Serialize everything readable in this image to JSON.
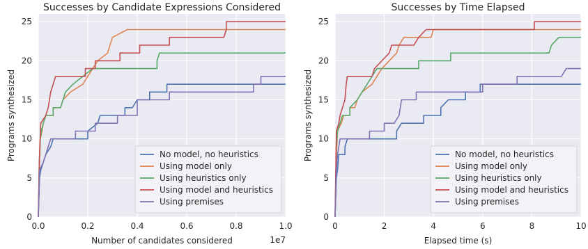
{
  "colors": {
    "background": "#eaeaf2",
    "grid": "#ffffff",
    "legend_bg": "#f3f3f7",
    "No model, no heuristics": "#4c72b0",
    "Using model only": "#dd8452",
    "Using heuristics only": "#55a868",
    "Using model and heuristics": "#c44e52",
    "Using premises": "#8172b3"
  },
  "chart_data": [
    {
      "type": "line",
      "title": "Successes by Candidate Expressions Considered",
      "xlabel": "Number of candidates considered",
      "ylabel": "Programs synthesized",
      "x_offset_label": "1e7",
      "xlim": [
        0,
        1.0
      ],
      "ylim": [
        0,
        26
      ],
      "xticks": [
        "0.0",
        "0.2",
        "0.4",
        "0.6",
        "0.8",
        "1.0"
      ],
      "yticks": [
        "0",
        "5",
        "10",
        "15",
        "20",
        "25"
      ],
      "grid": true,
      "legend": "lower-right",
      "series": [
        {
          "name": "No model, no heuristics",
          "points": [
            [
              0,
              0
            ],
            [
              0.005,
              5
            ],
            [
              0.01,
              6
            ],
            [
              0.02,
              7
            ],
            [
              0.03,
              8
            ],
            [
              0.05,
              9
            ],
            [
              0.06,
              10
            ],
            [
              0.2,
              10
            ],
            [
              0.2,
              11
            ],
            [
              0.24,
              12
            ],
            [
              0.25,
              13
            ],
            [
              0.35,
              13
            ],
            [
              0.35,
              14
            ],
            [
              0.38,
              14
            ],
            [
              0.4,
              15
            ],
            [
              0.45,
              15
            ],
            [
              0.45,
              16
            ],
            [
              0.52,
              16
            ],
            [
              0.52,
              17
            ],
            [
              1.0,
              17
            ]
          ]
        },
        {
          "name": "Using model only",
          "points": [
            [
              0,
              0
            ],
            [
              0.004,
              6
            ],
            [
              0.008,
              10
            ],
            [
              0.015,
              11
            ],
            [
              0.02,
              12
            ],
            [
              0.03,
              13
            ],
            [
              0.06,
              13
            ],
            [
              0.06,
              14
            ],
            [
              0.09,
              14
            ],
            [
              0.1,
              15
            ],
            [
              0.13,
              16
            ],
            [
              0.18,
              17
            ],
            [
              0.2,
              18
            ],
            [
              0.22,
              19
            ],
            [
              0.24,
              20
            ],
            [
              0.28,
              21
            ],
            [
              0.29,
              22
            ],
            [
              0.3,
              23
            ],
            [
              0.36,
              24
            ],
            [
              1.0,
              24
            ]
          ]
        },
        {
          "name": "Using heuristics only",
          "points": [
            [
              0,
              0
            ],
            [
              0.004,
              7
            ],
            [
              0.008,
              10
            ],
            [
              0.012,
              11
            ],
            [
              0.02,
              12
            ],
            [
              0.03,
              13
            ],
            [
              0.06,
              13
            ],
            [
              0.06,
              14
            ],
            [
              0.09,
              14
            ],
            [
              0.1,
              15
            ],
            [
              0.11,
              16
            ],
            [
              0.14,
              17
            ],
            [
              0.18,
              18
            ],
            [
              0.22,
              19
            ],
            [
              0.48,
              19
            ],
            [
              0.48,
              20
            ],
            [
              0.49,
              21
            ],
            [
              1.0,
              21
            ]
          ]
        },
        {
          "name": "Using model and heuristics",
          "points": [
            [
              0,
              0
            ],
            [
              0.004,
              7
            ],
            [
              0.01,
              12
            ],
            [
              0.03,
              13
            ],
            [
              0.04,
              14
            ],
            [
              0.05,
              16
            ],
            [
              0.06,
              17
            ],
            [
              0.07,
              18
            ],
            [
              0.19,
              18
            ],
            [
              0.19,
              19
            ],
            [
              0.23,
              19
            ],
            [
              0.23,
              20
            ],
            [
              0.33,
              20
            ],
            [
              0.33,
              21
            ],
            [
              0.41,
              21
            ],
            [
              0.41,
              22
            ],
            [
              0.53,
              22
            ],
            [
              0.53,
              23
            ],
            [
              0.75,
              23
            ],
            [
              0.76,
              24
            ],
            [
              0.76,
              25
            ],
            [
              1.0,
              25
            ]
          ]
        },
        {
          "name": "Using premises",
          "points": [
            [
              0,
              0
            ],
            [
              0.005,
              6
            ],
            [
              0.02,
              7
            ],
            [
              0.03,
              8
            ],
            [
              0.04,
              9
            ],
            [
              0.05,
              10
            ],
            [
              0.15,
              10
            ],
            [
              0.15,
              11
            ],
            [
              0.23,
              11
            ],
            [
              0.23,
              12
            ],
            [
              0.32,
              12
            ],
            [
              0.32,
              13
            ],
            [
              0.4,
              13
            ],
            [
              0.4,
              14
            ],
            [
              0.4,
              15
            ],
            [
              0.53,
              15
            ],
            [
              0.53,
              16
            ],
            [
              0.87,
              16
            ],
            [
              0.87,
              17
            ],
            [
              0.9,
              17
            ],
            [
              0.9,
              18
            ],
            [
              1.0,
              18
            ]
          ]
        }
      ]
    },
    {
      "type": "line",
      "title": "Successes by Time Elapsed",
      "xlabel": "Elapsed time (s)",
      "ylabel": "Programs synthesized",
      "xlim": [
        0,
        10
      ],
      "ylim": [
        0,
        26
      ],
      "xticks": [
        "0",
        "2",
        "4",
        "6",
        "8",
        "10"
      ],
      "yticks": [
        "0",
        "5",
        "10",
        "15",
        "20",
        "25"
      ],
      "grid": true,
      "legend": "lower-right",
      "series": [
        {
          "name": "No model, no heuristics",
          "points": [
            [
              0,
              0
            ],
            [
              0.05,
              5
            ],
            [
              0.1,
              6
            ],
            [
              0.15,
              8
            ],
            [
              0.4,
              8
            ],
            [
              0.4,
              9
            ],
            [
              0.5,
              10
            ],
            [
              2.5,
              10
            ],
            [
              2.5,
              11
            ],
            [
              2.7,
              12
            ],
            [
              3.6,
              12
            ],
            [
              3.6,
              13
            ],
            [
              4.3,
              13
            ],
            [
              4.3,
              14
            ],
            [
              4.6,
              15
            ],
            [
              5.3,
              15
            ],
            [
              5.3,
              16
            ],
            [
              5.9,
              16
            ],
            [
              5.9,
              17
            ],
            [
              10,
              17
            ]
          ]
        },
        {
          "name": "Using model only",
          "points": [
            [
              0,
              0
            ],
            [
              0.05,
              8
            ],
            [
              0.1,
              11
            ],
            [
              0.25,
              12
            ],
            [
              0.35,
              13
            ],
            [
              0.6,
              13
            ],
            [
              0.6,
              14
            ],
            [
              0.8,
              14
            ],
            [
              0.9,
              15
            ],
            [
              1.1,
              16
            ],
            [
              1.5,
              17
            ],
            [
              1.7,
              18
            ],
            [
              1.9,
              19
            ],
            [
              2.2,
              20
            ],
            [
              2.5,
              21
            ],
            [
              2.6,
              22
            ],
            [
              2.8,
              23
            ],
            [
              3.9,
              23
            ],
            [
              4.0,
              24
            ],
            [
              10,
              24
            ]
          ]
        },
        {
          "name": "Using heuristics only",
          "points": [
            [
              0,
              0
            ],
            [
              0.05,
              9
            ],
            [
              0.1,
              11
            ],
            [
              0.2,
              12
            ],
            [
              0.3,
              13
            ],
            [
              0.6,
              13
            ],
            [
              0.6,
              14
            ],
            [
              0.9,
              15
            ],
            [
              1.1,
              16
            ],
            [
              1.3,
              17
            ],
            [
              1.5,
              18
            ],
            [
              1.7,
              19
            ],
            [
              3.4,
              19
            ],
            [
              3.4,
              20
            ],
            [
              4.7,
              20
            ],
            [
              4.7,
              21
            ],
            [
              8.7,
              21
            ],
            [
              8.8,
              22
            ],
            [
              9.1,
              23
            ],
            [
              10,
              23
            ]
          ]
        },
        {
          "name": "Using model and heuristics",
          "points": [
            [
              0,
              0
            ],
            [
              0.05,
              11
            ],
            [
              0.15,
              12
            ],
            [
              0.2,
              13
            ],
            [
              0.3,
              14
            ],
            [
              0.4,
              15
            ],
            [
              0.45,
              17
            ],
            [
              0.5,
              18
            ],
            [
              1.5,
              18
            ],
            [
              1.6,
              19
            ],
            [
              1.9,
              20
            ],
            [
              2.2,
              21
            ],
            [
              2.3,
              22
            ],
            [
              3.2,
              22
            ],
            [
              3.4,
              23
            ],
            [
              3.7,
              24
            ],
            [
              8.1,
              24
            ],
            [
              8.1,
              25
            ],
            [
              10,
              25
            ]
          ]
        },
        {
          "name": "Using premises",
          "points": [
            [
              0,
              0
            ],
            [
              0.05,
              6
            ],
            [
              0.1,
              8
            ],
            [
              0.15,
              9
            ],
            [
              0.2,
              10
            ],
            [
              1.4,
              10
            ],
            [
              1.4,
              11
            ],
            [
              2.0,
              11
            ],
            [
              2.0,
              12
            ],
            [
              2.4,
              12
            ],
            [
              2.6,
              13
            ],
            [
              2.7,
              15
            ],
            [
              3.3,
              15
            ],
            [
              3.3,
              16
            ],
            [
              6.0,
              16
            ],
            [
              6.0,
              17
            ],
            [
              7.4,
              17
            ],
            [
              7.4,
              18
            ],
            [
              9.2,
              18
            ],
            [
              9.4,
              19
            ],
            [
              10,
              19
            ]
          ]
        }
      ]
    }
  ]
}
